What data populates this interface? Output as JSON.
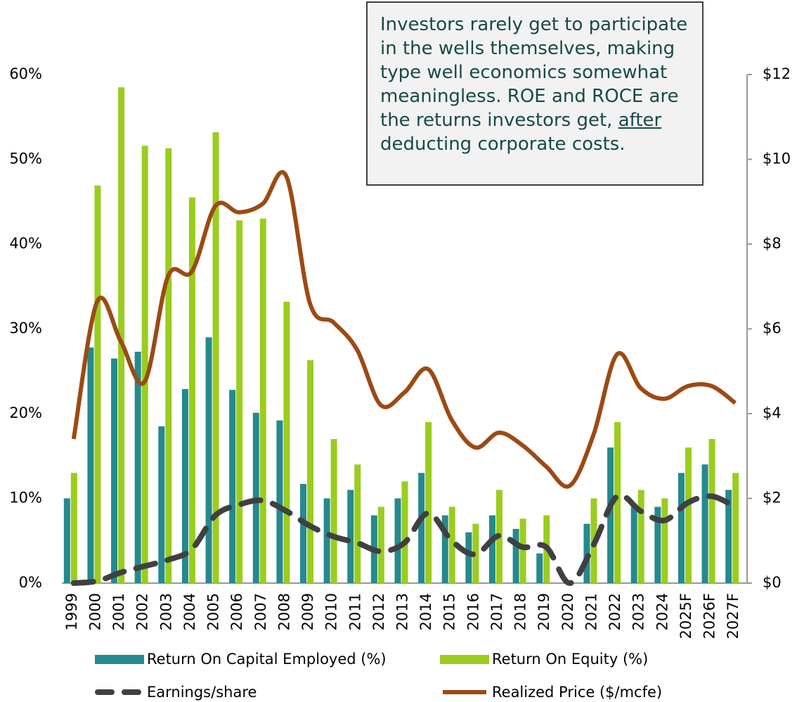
{
  "chart_data": {
    "type": "bar-line",
    "annotation": [
      "Investors rarely get to participate in the wells themselves, making type well economics somewhat meaningless. ROE and ROCE are the returns investors get, ",
      "after",
      " deducting corporate costs."
    ],
    "categories": [
      "1999",
      "2000",
      "2001",
      "2002",
      "2003",
      "2004",
      "2005",
      "2006",
      "2007",
      "2008",
      "2009",
      "2010",
      "2011",
      "2012",
      "2013",
      "2014",
      "2015",
      "2016",
      "2017",
      "2018",
      "2019",
      "2020",
      "2021",
      "2022",
      "2023",
      "2024",
      "2025F",
      "2026F",
      "2027F"
    ],
    "series": [
      {
        "name": "Return On Capital Employed (%)",
        "type": "bar",
        "color": "#25898e",
        "values": [
          10,
          27.8,
          26.5,
          27.3,
          18.5,
          22.9,
          29,
          22.8,
          20.1,
          19.2,
          11.7,
          10,
          11,
          8,
          10,
          13,
          8,
          6,
          8,
          6.4,
          3.5,
          0,
          7,
          16,
          9,
          9,
          13,
          14,
          11
        ]
      },
      {
        "name": "Return On Equity (%)",
        "type": "bar",
        "color": "#9acd1e",
        "values": [
          13,
          46.9,
          58.5,
          51.6,
          51.3,
          45.5,
          53.2,
          42.8,
          43,
          33.2,
          26.3,
          17,
          14,
          9,
          12,
          19,
          9,
          7,
          11,
          7.6,
          8,
          0,
          10,
          19,
          11,
          10,
          16,
          17,
          13
        ]
      },
      {
        "name": "Earnings/share",
        "type": "line",
        "axis": "y2",
        "color": "#404040",
        "dashed": true,
        "values": [
          0,
          0.05,
          0.25,
          0.4,
          0.55,
          0.8,
          1.6,
          1.85,
          1.95,
          1.7,
          1.35,
          1.1,
          0.95,
          0.75,
          0.95,
          1.65,
          1.0,
          0.68,
          1.12,
          0.85,
          0.85,
          0,
          0.9,
          2.05,
          1.7,
          1.48,
          1.9,
          2.05,
          1.8
        ]
      },
      {
        "name": "Realized Price ($/mcfe)",
        "type": "line",
        "axis": "y2",
        "color": "#9c4a13",
        "dashed": false,
        "values": [
          3.4,
          6.65,
          5.7,
          4.75,
          7.25,
          7.35,
          8.9,
          8.75,
          8.95,
          9.6,
          6.6,
          6.15,
          5.5,
          4.2,
          4.5,
          5.05,
          3.85,
          3.2,
          3.55,
          3.25,
          2.75,
          2.3,
          3.5,
          5.4,
          4.6,
          4.35,
          4.65,
          4.65,
          4.25
        ]
      }
    ],
    "ylim": [
      0,
      60
    ],
    "yticks": [
      {
        "value": 0,
        "label": "0%"
      },
      {
        "value": 10,
        "label": "10%"
      },
      {
        "value": 20,
        "label": "20%"
      },
      {
        "value": 30,
        "label": "30%"
      },
      {
        "value": 40,
        "label": "40%"
      },
      {
        "value": 50,
        "label": "50%"
      },
      {
        "value": 60,
        "label": "60%"
      }
    ],
    "y2lim": [
      0,
      12
    ],
    "y2ticks": [
      {
        "value": 0,
        "label": "$0"
      },
      {
        "value": 2,
        "label": "$2"
      },
      {
        "value": 4,
        "label": "$4"
      },
      {
        "value": 6,
        "label": "$6"
      },
      {
        "value": 8,
        "label": "$8"
      },
      {
        "value": 10,
        "label": "$10"
      },
      {
        "value": 12,
        "label": "$12"
      }
    ],
    "grid": false,
    "legend": "bottom"
  }
}
